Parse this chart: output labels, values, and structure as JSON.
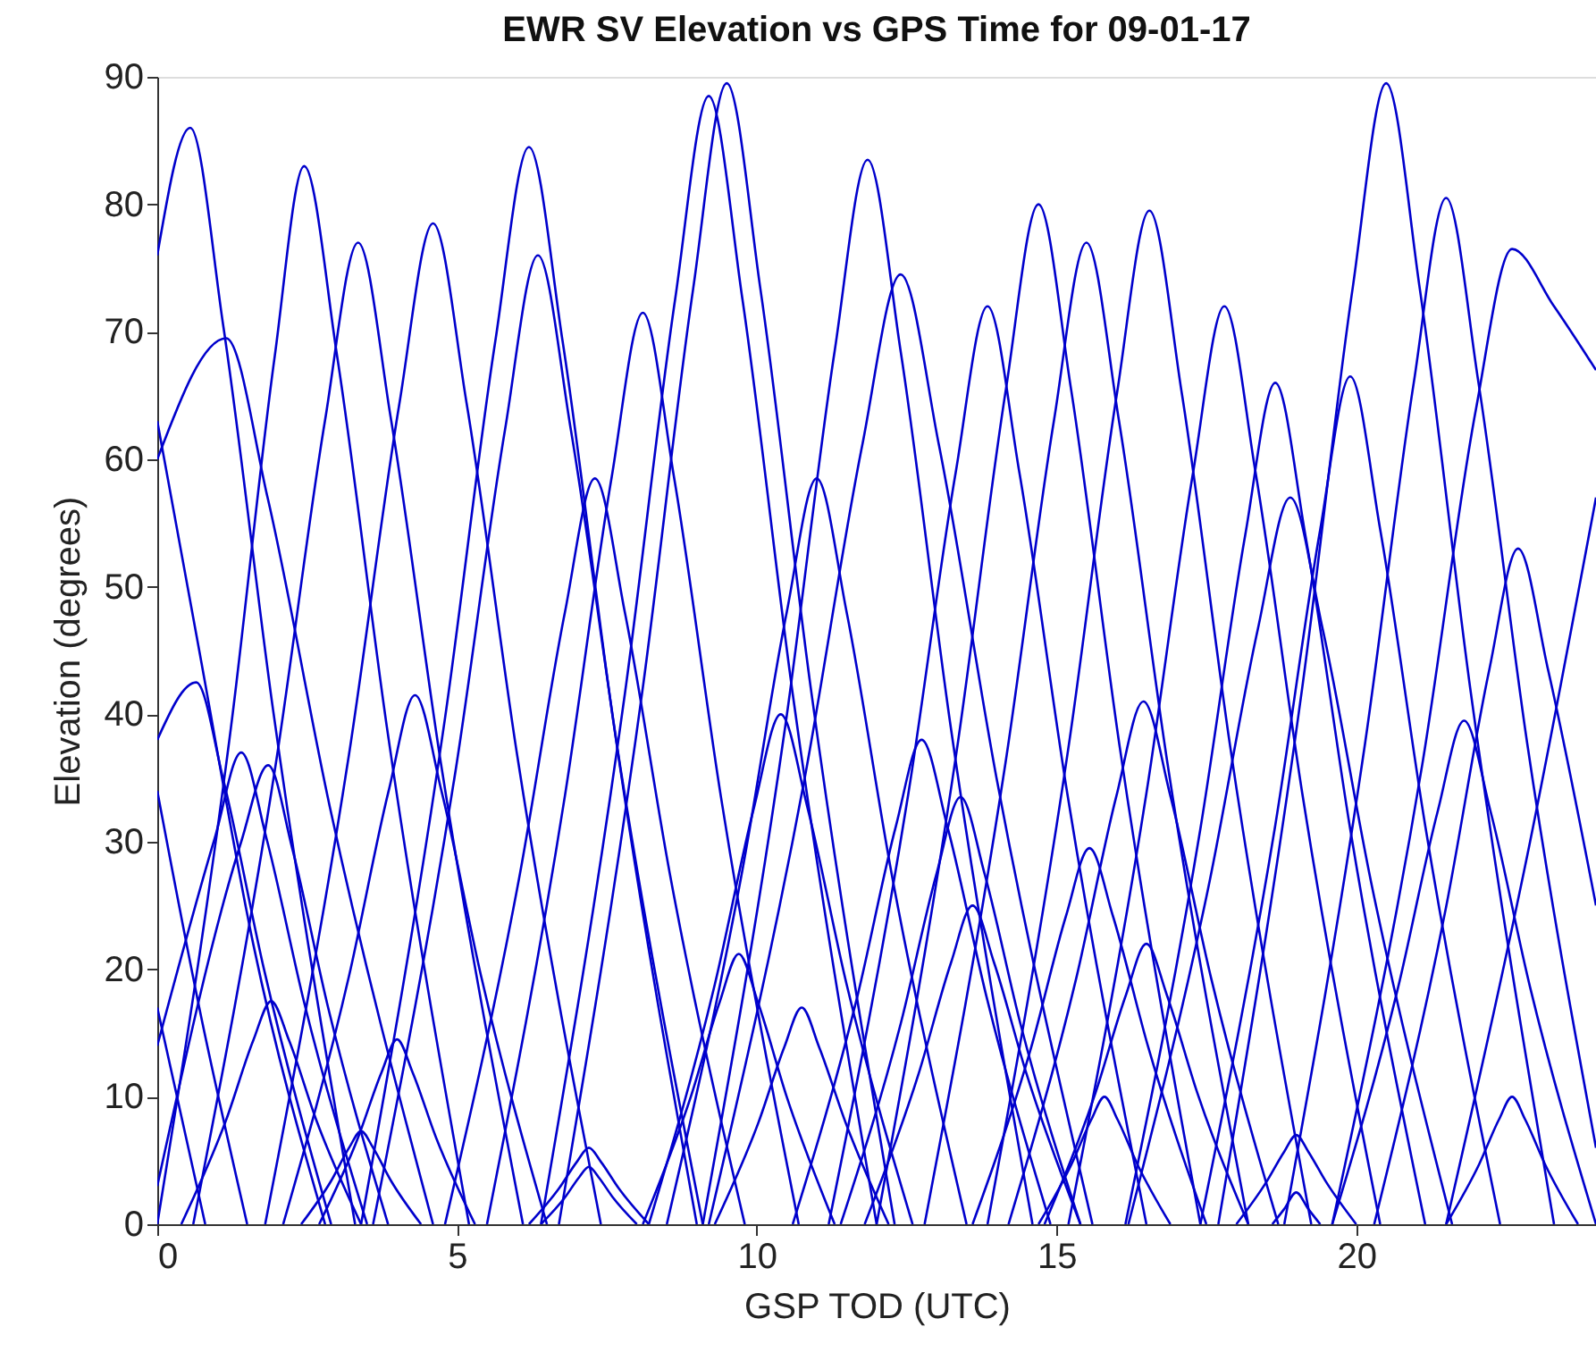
{
  "chart_data": {
    "type": "line",
    "title": "EWR SV Elevation vs GPS Time for 09-01-17",
    "xlabel": "GSP TOD (UTC)",
    "ylabel": "Elevation (degrees)",
    "xlim": [
      0,
      24
    ],
    "ylim": [
      0,
      90
    ],
    "xticks": [
      0,
      5,
      10,
      15,
      20
    ],
    "yticks": [
      0,
      10,
      20,
      30,
      40,
      50,
      60,
      70,
      80,
      90
    ],
    "grid": false,
    "legend": false,
    "marker": "none",
    "line_style": "solid",
    "series": [
      {
        "color": "#0000cc",
        "x": [
          0,
          0.55,
          1.1,
          1.93,
          3.3
        ],
        "values": [
          76,
          86,
          70.5,
          40.4,
          0
        ]
      },
      {
        "color": "#0000cc",
        "x": [
          0,
          1.23,
          1.96,
          2.45,
          3.0,
          3.83,
          5.2
        ],
        "values": [
          0,
          39,
          68.1,
          83,
          68.1,
          39,
          0
        ]
      },
      {
        "color": "#0000cc",
        "x": [
          0,
          1.15,
          1.84,
          2.88,
          4.6
        ],
        "values": [
          60,
          69.5,
          57,
          32.7,
          0
        ]
      },
      {
        "color": "#0000cc",
        "x": [
          0.6,
          1.98,
          2.8,
          3.35,
          3.9,
          4.73,
          6.1
        ],
        "values": [
          0,
          36.2,
          63.1,
          77,
          63.1,
          36.2,
          0
        ]
      },
      {
        "color": "#0000cc",
        "x": [
          1.8,
          3.2,
          4.04,
          4.6,
          5.16,
          6.0,
          7.4
        ],
        "values": [
          0,
          36.9,
          64.4,
          78.5,
          64.4,
          36.9,
          0
        ]
      },
      {
        "color": "#0000cc",
        "x": [
          3.4,
          4.8,
          5.64,
          6.2,
          6.76,
          7.6,
          9.0
        ],
        "values": [
          0,
          39.7,
          69.3,
          84.5,
          69.3,
          39.7,
          0
        ]
      },
      {
        "color": "#0000cc",
        "x": [
          3.6,
          4.98,
          5.8,
          6.35,
          6.9,
          7.73,
          9.1
        ],
        "values": [
          0,
          35.7,
          62.3,
          76,
          62.3,
          35.7,
          0
        ]
      },
      {
        "color": "#0000cc",
        "x": [
          5.5,
          6.8,
          7.58,
          8.1,
          8.62,
          9.4,
          10.7
        ],
        "values": [
          0,
          33.6,
          58.6,
          71.5,
          58.6,
          33.6,
          0
        ]
      },
      {
        "color": "#0000cc",
        "x": [
          6.4,
          7.8,
          8.64,
          9.2,
          9.76,
          10.6,
          12.0
        ],
        "values": [
          0,
          41.6,
          72.6,
          88.5,
          72.6,
          41.6,
          0
        ]
      },
      {
        "color": "#0000cc",
        "x": [
          6.7,
          8.1,
          8.94,
          9.5,
          10.06,
          10.9,
          12.3
        ],
        "values": [
          0,
          42.1,
          73.4,
          89.5,
          73.4,
          42.1,
          0
        ]
      },
      {
        "color": "#0000cc",
        "x": [
          9.1,
          10.48,
          11.3,
          11.85,
          12.4,
          13.23,
          14.6
        ],
        "values": [
          0,
          39.2,
          68.5,
          83.5,
          68.5,
          39.2,
          0
        ]
      },
      {
        "color": "#0000cc",
        "x": [
          9.2,
          10.8,
          11.76,
          12.4,
          13.04,
          14.0,
          15.6
        ],
        "values": [
          0,
          35,
          61.1,
          74.5,
          61.1,
          35,
          0
        ]
      },
      {
        "color": "#0000cc",
        "x": [
          11.2,
          12.53,
          13.32,
          13.85,
          14.38,
          15.18,
          16.5
        ],
        "values": [
          0,
          33.8,
          59,
          72,
          59,
          33.8,
          0
        ]
      },
      {
        "color": "#0000cc",
        "x": [
          12.0,
          13.35,
          14.16,
          14.7,
          15.24,
          16.05,
          17.4
        ],
        "values": [
          0,
          37.6,
          65.6,
          80,
          65.6,
          37.6,
          0
        ]
      },
      {
        "color": "#0000cc",
        "x": [
          12.8,
          14.15,
          14.96,
          15.5,
          16.04,
          16.85,
          18.2
        ],
        "values": [
          0,
          36.2,
          63.1,
          77,
          63.1,
          36.2,
          0
        ]
      },
      {
        "color": "#0000cc",
        "x": [
          13.85,
          15.2,
          16.01,
          16.55,
          17.09,
          17.9,
          19.25
        ],
        "values": [
          0,
          37.4,
          65.2,
          79.5,
          65.2,
          37.4,
          0
        ]
      },
      {
        "color": "#0000cc",
        "x": [
          15.2,
          16.5,
          17.28,
          17.8,
          18.32,
          19.1,
          20.4
        ],
        "values": [
          0,
          33.8,
          59,
          72,
          59,
          33.8,
          0
        ]
      },
      {
        "color": "#0000cc",
        "x": [
          16.15,
          17.4,
          18.15,
          18.65,
          19.15,
          19.9,
          21.15
        ],
        "values": [
          0,
          31,
          54.1,
          66,
          54.1,
          31,
          0
        ]
      },
      {
        "color": "#0000cc",
        "x": [
          16.2,
          17.55,
          18.36,
          18.9,
          19.44,
          20.25,
          21.6
        ],
        "values": [
          0,
          26.8,
          46.7,
          57,
          46.7,
          26.8,
          0
        ]
      },
      {
        "color": "#0000cc",
        "x": [
          17.4,
          18.65,
          19.4,
          19.9,
          20.4,
          21.15,
          22.4
        ],
        "values": [
          0,
          31.3,
          54.5,
          66.5,
          54.5,
          31.3,
          0
        ]
      },
      {
        "color": "#0000cc",
        "x": [
          17.7,
          19.1,
          19.94,
          20.5,
          21.06,
          21.9,
          23.3
        ],
        "values": [
          0,
          42.1,
          73.4,
          89.5,
          73.4,
          42.1,
          0
        ]
      },
      {
        "color": "#0000cc",
        "x": [
          18.8,
          20.15,
          20.96,
          21.5,
          22.04,
          22.85,
          24
        ],
        "values": [
          0,
          37.8,
          66,
          80.5,
          66,
          37.8,
          6
        ]
      },
      {
        "color": "#0000cc",
        "x": [
          19.6,
          21.1,
          22.0,
          22.6,
          23.3,
          24
        ],
        "values": [
          0,
          36,
          64,
          76.5,
          72,
          67
        ]
      },
      {
        "color": "#0000cc",
        "x": [
          20.3,
          21.5,
          22.22,
          22.7,
          23.2,
          24
        ],
        "values": [
          0,
          24.9,
          43.5,
          53,
          43.5,
          25
        ]
      },
      {
        "color": "#0000cc",
        "x": [
          4.8,
          6.05,
          6.8,
          7.3,
          7.8,
          8.55,
          9.8
        ],
        "values": [
          0,
          27.5,
          48,
          58.5,
          48,
          27.5,
          0
        ]
      },
      {
        "color": "#0000cc",
        "x": [
          8.5,
          9.75,
          10.5,
          11.0,
          11.5,
          12.25,
          13.5
        ],
        "values": [
          0,
          27.5,
          48,
          58.5,
          48,
          27.5,
          0
        ]
      },
      {
        "color": "#0000cc",
        "x": [
          0,
          0.65,
          1.1,
          1.78,
          2.9
        ],
        "values": [
          38,
          42.5,
          34.9,
          20,
          0
        ]
      },
      {
        "color": "#0000cc",
        "x": [
          2.1,
          3.2,
          3.86,
          4.3,
          4.74,
          5.4,
          6.5
        ],
        "values": [
          0,
          19.5,
          34,
          41.5,
          34,
          19.5,
          0
        ]
      },
      {
        "color": "#0000cc",
        "x": [
          0,
          0.96,
          1.4,
          1.82,
          2.45,
          3.5
        ],
        "values": [
          14,
          30.3,
          37,
          30.3,
          17.4,
          0
        ]
      },
      {
        "color": "#0000cc",
        "x": [
          0,
          1.4,
          1.85,
          2.25,
          2.85,
          3.85
        ],
        "values": [
          3,
          30,
          36,
          29.5,
          17,
          0
        ]
      },
      {
        "color": "#0000cc",
        "x": [
          8.2,
          9.3,
          9.96,
          10.4,
          10.84,
          11.5,
          12.6
        ],
        "values": [
          0,
          18.8,
          32.8,
          40,
          32.8,
          18.8,
          0
        ]
      },
      {
        "color": "#0000cc",
        "x": [
          10.6,
          11.68,
          12.32,
          12.75,
          13.18,
          13.83,
          14.9
        ],
        "values": [
          0,
          17.9,
          31.2,
          38,
          31.2,
          17.9,
          0
        ]
      },
      {
        "color": "#0000cc",
        "x": [
          11.4,
          12.4,
          13.0,
          13.4,
          13.8,
          14.4,
          15.4
        ],
        "values": [
          0,
          15.7,
          27.5,
          33.5,
          27.5,
          15.7,
          0
        ]
      },
      {
        "color": "#0000cc",
        "x": [
          11.8,
          12.7,
          13.24,
          13.6,
          13.96,
          14.5,
          15.4
        ],
        "values": [
          0,
          11.8,
          20.5,
          25,
          20.5,
          11.8,
          0
        ]
      },
      {
        "color": "#0000cc",
        "x": [
          13.6,
          14.58,
          15.16,
          15.55,
          15.94,
          16.53,
          17.5
        ],
        "values": [
          0,
          13.9,
          24.2,
          29.5,
          24.2,
          13.9,
          0
        ]
      },
      {
        "color": "#0000cc",
        "x": [
          14.2,
          15.33,
          16.0,
          16.45,
          16.9,
          17.58,
          18.7
        ],
        "values": [
          0,
          19.3,
          33.6,
          41,
          33.6,
          19.3,
          0
        ]
      },
      {
        "color": "#0000cc",
        "x": [
          14.8,
          15.65,
          16.16,
          16.5,
          16.84,
          17.35,
          18.2
        ],
        "values": [
          0,
          10.3,
          18,
          22,
          18,
          10.3,
          0
        ]
      },
      {
        "color": "#0000cc",
        "x": [
          19.6,
          20.7,
          21.36,
          21.8,
          22.24,
          22.9,
          24
        ],
        "values": [
          0,
          18.6,
          32.4,
          39.5,
          32.4,
          18.6,
          0
        ]
      },
      {
        "color": "#0000cc",
        "x": [
          8.1,
          8.9,
          9.38,
          9.7,
          10.02,
          10.5,
          11.3
        ],
        "values": [
          0,
          10,
          17.4,
          21.2,
          17.4,
          10,
          0
        ]
      },
      {
        "color": "#0000cc",
        "x": [
          9.3,
          10.03,
          10.46,
          10.75,
          11.04,
          11.48,
          12.2
        ],
        "values": [
          0,
          8,
          13.9,
          17,
          13.9,
          8,
          0
        ]
      },
      {
        "color": "#0000cc",
        "x": [
          0.4,
          1.15,
          1.6,
          1.9,
          2.2,
          2.65,
          3.4
        ],
        "values": [
          0,
          8.2,
          14.4,
          17.5,
          14.4,
          8.2,
          0
        ]
      },
      {
        "color": "#0000cc",
        "x": [
          2.7,
          3.35,
          3.74,
          4.0,
          4.26,
          4.65,
          5.3
        ],
        "values": [
          0,
          6.8,
          11.9,
          14.5,
          11.9,
          6.8,
          0
        ]
      },
      {
        "color": "#0000cc",
        "x": [
          2.4,
          2.9,
          3.2,
          3.4,
          3.6,
          3.9,
          4.4
        ],
        "values": [
          0,
          3.4,
          6,
          7.3,
          6,
          3.4,
          0
        ]
      },
      {
        "color": "#0000cc",
        "x": [
          6.2,
          6.7,
          7.0,
          7.2,
          7.4,
          7.7,
          8.2
        ],
        "values": [
          0,
          2.8,
          4.9,
          6,
          4.9,
          2.8,
          0
        ]
      },
      {
        "color": "#0000cc",
        "x": [
          6.4,
          6.8,
          7.04,
          7.2,
          7.36,
          7.6,
          8.0
        ],
        "values": [
          0,
          2.1,
          3.7,
          4.5,
          3.7,
          2.1,
          0
        ]
      },
      {
        "color": "#0000cc",
        "x": [
          14.7,
          15.25,
          15.58,
          15.8,
          16.02,
          16.35,
          16.9
        ],
        "values": [
          0,
          4.7,
          8.2,
          10,
          8.2,
          4.7,
          0
        ]
      },
      {
        "color": "#0000cc",
        "x": [
          18,
          18.5,
          18.8,
          19,
          19.2,
          19.5,
          20
        ],
        "values": [
          0,
          3.3,
          5.7,
          7,
          5.7,
          3.3,
          0
        ]
      },
      {
        "color": "#0000cc",
        "x": [
          18.6,
          18.8,
          19,
          19.2,
          19.4
        ],
        "values": [
          0,
          1.2,
          2.5,
          1.2,
          0
        ]
      },
      {
        "color": "#0000cc",
        "x": [
          21.5,
          22.05,
          22.38,
          22.6,
          22.82,
          23.15,
          23.7
        ],
        "values": [
          0,
          4.7,
          8.2,
          10,
          8.2,
          4.7,
          0
        ]
      },
      {
        "color": "#0000cc",
        "x": [
          0,
          0.7,
          1.6,
          2.8
        ],
        "values": [
          63,
          45,
          22,
          0
        ]
      },
      {
        "color": "#0000cc",
        "x": [
          0,
          0.7,
          1.5
        ],
        "values": [
          34,
          17,
          0
        ]
      },
      {
        "color": "#0000cc",
        "x": [
          0,
          0.4,
          0.8
        ],
        "values": [
          17,
          8.5,
          0
        ]
      },
      {
        "color": "#0000cc",
        "x": [
          21.5,
          22.9,
          24
        ],
        "values": [
          0,
          30,
          57
        ]
      }
    ]
  }
}
